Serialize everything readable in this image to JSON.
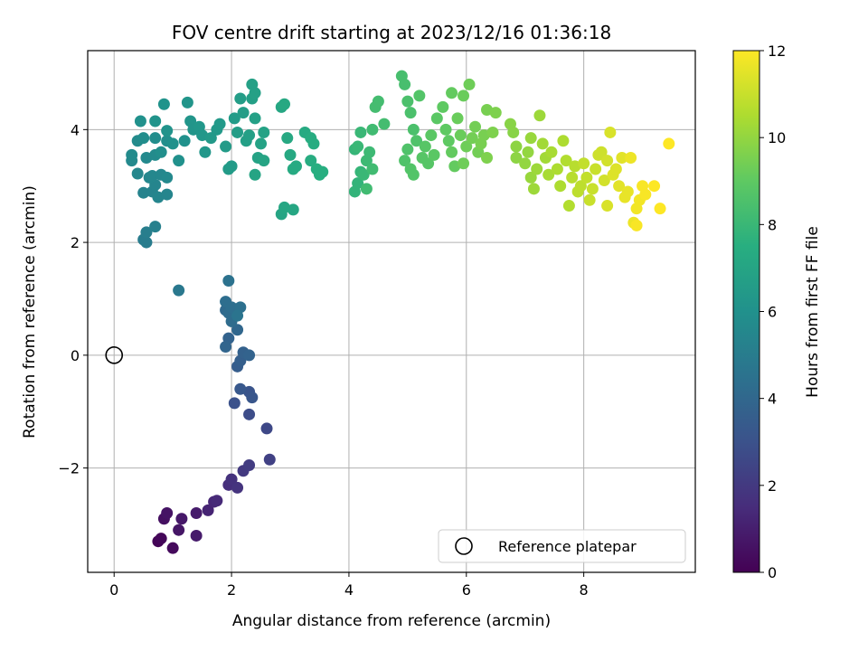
{
  "chart_data": {
    "type": "scatter",
    "title": "FOV centre drift starting at 2023/12/16 01:36:18",
    "xlabel": "Angular distance from reference (arcmin)",
    "ylabel": "Rotation from reference (arcmin)",
    "xlim": [
      -0.45,
      9.9
    ],
    "ylim": [
      -3.85,
      5.4
    ],
    "xticks": [
      0,
      2,
      4,
      6,
      8
    ],
    "yticks": [
      -2,
      0,
      2,
      4
    ],
    "xtick_labels": [
      "0",
      "2",
      "4",
      "6",
      "8"
    ],
    "ytick_labels": [
      "−2",
      "0",
      "2",
      "4"
    ],
    "grid": true,
    "colormap": "viridis",
    "colorbar": {
      "label": "Hours from first FF file",
      "range": [
        0,
        12
      ],
      "ticks": [
        0,
        2,
        4,
        6,
        8,
        10,
        12
      ],
      "tick_labels": [
        "0",
        "2",
        "4",
        "6",
        "8",
        "10",
        "12"
      ]
    },
    "legend": {
      "position": "lower-right",
      "entries": [
        {
          "label": "Reference platepar",
          "marker": "open-circle"
        }
      ]
    },
    "reference_point": {
      "x": 0,
      "y": 0,
      "label": "Reference platepar"
    },
    "points": [
      {
        "x": 0.75,
        "y": -3.3,
        "t": 0.1
      },
      {
        "x": 0.8,
        "y": -3.25,
        "t": 0.2
      },
      {
        "x": 1.0,
        "y": -3.42,
        "t": 0.3
      },
      {
        "x": 0.85,
        "y": -2.9,
        "t": 0.5
      },
      {
        "x": 0.9,
        "y": -2.8,
        "t": 0.6
      },
      {
        "x": 1.1,
        "y": -3.1,
        "t": 0.7
      },
      {
        "x": 1.15,
        "y": -2.9,
        "t": 0.8
      },
      {
        "x": 1.4,
        "y": -2.8,
        "t": 0.9
      },
      {
        "x": 1.4,
        "y": -3.2,
        "t": 0.9
      },
      {
        "x": 1.6,
        "y": -2.75,
        "t": 1.2
      },
      {
        "x": 1.7,
        "y": -2.6,
        "t": 1.3
      },
      {
        "x": 1.75,
        "y": -2.58,
        "t": 1.4
      },
      {
        "x": 1.95,
        "y": -2.3,
        "t": 1.6
      },
      {
        "x": 2.0,
        "y": -2.2,
        "t": 1.7
      },
      {
        "x": 2.1,
        "y": -2.35,
        "t": 1.8
      },
      {
        "x": 2.2,
        "y": -2.05,
        "t": 2.0
      },
      {
        "x": 2.3,
        "y": -1.95,
        "t": 2.1
      },
      {
        "x": 2.65,
        "y": -1.85,
        "t": 2.3
      },
      {
        "x": 2.6,
        "y": -1.3,
        "t": 2.6
      },
      {
        "x": 2.3,
        "y": -1.05,
        "t": 2.8
      },
      {
        "x": 2.05,
        "y": -0.85,
        "t": 3.0
      },
      {
        "x": 2.3,
        "y": -0.65,
        "t": 3.1
      },
      {
        "x": 2.35,
        "y": -0.75,
        "t": 3.2
      },
      {
        "x": 2.15,
        "y": -0.6,
        "t": 3.3
      },
      {
        "x": 2.1,
        "y": -0.2,
        "t": 3.5
      },
      {
        "x": 2.15,
        "y": -0.1,
        "t": 3.6
      },
      {
        "x": 2.2,
        "y": 0.05,
        "t": 3.7
      },
      {
        "x": 2.3,
        "y": 0.0,
        "t": 3.8
      },
      {
        "x": 1.95,
        "y": 0.3,
        "t": 3.8
      },
      {
        "x": 1.9,
        "y": 0.15,
        "t": 3.9
      },
      {
        "x": 2.1,
        "y": 0.45,
        "t": 4.0
      },
      {
        "x": 1.9,
        "y": 0.8,
        "t": 4.1
      },
      {
        "x": 1.95,
        "y": 0.75,
        "t": 4.2
      },
      {
        "x": 2.0,
        "y": 0.6,
        "t": 4.2
      },
      {
        "x": 1.9,
        "y": 0.95,
        "t": 4.3
      },
      {
        "x": 2.0,
        "y": 0.85,
        "t": 4.3
      },
      {
        "x": 2.15,
        "y": 0.85,
        "t": 4.4
      },
      {
        "x": 1.95,
        "y": 1.32,
        "t": 4.5
      },
      {
        "x": 2.1,
        "y": 0.7,
        "t": 4.6
      },
      {
        "x": 1.1,
        "y": 1.15,
        "t": 4.8
      },
      {
        "x": 0.55,
        "y": 2.0,
        "t": 5.0
      },
      {
        "x": 0.5,
        "y": 2.05,
        "t": 5.0
      },
      {
        "x": 0.55,
        "y": 2.18,
        "t": 5.1
      },
      {
        "x": 0.7,
        "y": 2.28,
        "t": 5.2
      },
      {
        "x": 0.5,
        "y": 2.88,
        "t": 5.3
      },
      {
        "x": 0.65,
        "y": 2.9,
        "t": 5.3
      },
      {
        "x": 0.75,
        "y": 2.8,
        "t": 5.4
      },
      {
        "x": 0.9,
        "y": 2.85,
        "t": 5.4
      },
      {
        "x": 0.7,
        "y": 3.02,
        "t": 5.4
      },
      {
        "x": 0.4,
        "y": 3.22,
        "t": 5.5
      },
      {
        "x": 0.6,
        "y": 3.15,
        "t": 5.5
      },
      {
        "x": 0.65,
        "y": 3.18,
        "t": 5.5
      },
      {
        "x": 0.8,
        "y": 3.2,
        "t": 5.5
      },
      {
        "x": 0.9,
        "y": 3.15,
        "t": 5.6
      },
      {
        "x": 0.3,
        "y": 3.45,
        "t": 5.6
      },
      {
        "x": 0.55,
        "y": 3.5,
        "t": 5.6
      },
      {
        "x": 0.7,
        "y": 3.55,
        "t": 5.7
      },
      {
        "x": 0.3,
        "y": 3.55,
        "t": 5.7
      },
      {
        "x": 0.4,
        "y": 3.8,
        "t": 5.7
      },
      {
        "x": 0.5,
        "y": 3.85,
        "t": 5.8
      },
      {
        "x": 0.7,
        "y": 3.85,
        "t": 5.8
      },
      {
        "x": 0.8,
        "y": 3.6,
        "t": 5.9
      },
      {
        "x": 0.9,
        "y": 3.8,
        "t": 5.9
      },
      {
        "x": 1.0,
        "y": 3.75,
        "t": 6.0
      },
      {
        "x": 1.1,
        "y": 3.45,
        "t": 6.0
      },
      {
        "x": 1.2,
        "y": 3.8,
        "t": 6.0
      },
      {
        "x": 0.45,
        "y": 4.15,
        "t": 6.0
      },
      {
        "x": 0.7,
        "y": 4.15,
        "t": 6.1
      },
      {
        "x": 0.85,
        "y": 4.45,
        "t": 6.1
      },
      {
        "x": 0.9,
        "y": 3.98,
        "t": 6.1
      },
      {
        "x": 1.25,
        "y": 4.48,
        "t": 6.2
      },
      {
        "x": 1.3,
        "y": 4.15,
        "t": 6.2
      },
      {
        "x": 1.35,
        "y": 4.0,
        "t": 6.2
      },
      {
        "x": 1.45,
        "y": 4.05,
        "t": 6.3
      },
      {
        "x": 1.5,
        "y": 3.9,
        "t": 6.3
      },
      {
        "x": 1.55,
        "y": 3.6,
        "t": 6.3
      },
      {
        "x": 1.65,
        "y": 3.85,
        "t": 6.4
      },
      {
        "x": 1.75,
        "y": 4.0,
        "t": 6.4
      },
      {
        "x": 1.8,
        "y": 4.1,
        "t": 6.4
      },
      {
        "x": 1.9,
        "y": 3.7,
        "t": 6.5
      },
      {
        "x": 1.95,
        "y": 3.3,
        "t": 6.5
      },
      {
        "x": 2.0,
        "y": 3.35,
        "t": 6.5
      },
      {
        "x": 2.05,
        "y": 4.2,
        "t": 6.5
      },
      {
        "x": 2.1,
        "y": 3.95,
        "t": 6.6
      },
      {
        "x": 2.15,
        "y": 4.55,
        "t": 6.6
      },
      {
        "x": 2.2,
        "y": 4.3,
        "t": 6.6
      },
      {
        "x": 2.25,
        "y": 3.8,
        "t": 6.7
      },
      {
        "x": 2.3,
        "y": 3.9,
        "t": 6.7
      },
      {
        "x": 2.35,
        "y": 4.55,
        "t": 6.7
      },
      {
        "x": 2.4,
        "y": 4.65,
        "t": 6.8
      },
      {
        "x": 2.35,
        "y": 4.8,
        "t": 6.8
      },
      {
        "x": 2.4,
        "y": 4.2,
        "t": 6.8
      },
      {
        "x": 2.45,
        "y": 3.5,
        "t": 6.9
      },
      {
        "x": 2.5,
        "y": 3.75,
        "t": 6.9
      },
      {
        "x": 2.55,
        "y": 3.95,
        "t": 6.9
      },
      {
        "x": 2.4,
        "y": 3.2,
        "t": 7.0
      },
      {
        "x": 2.55,
        "y": 3.45,
        "t": 7.0
      },
      {
        "x": 2.85,
        "y": 2.5,
        "t": 7.0
      },
      {
        "x": 2.9,
        "y": 2.62,
        "t": 7.1
      },
      {
        "x": 3.05,
        "y": 2.58,
        "t": 7.1
      },
      {
        "x": 2.85,
        "y": 4.4,
        "t": 7.1
      },
      {
        "x": 2.9,
        "y": 4.45,
        "t": 7.2
      },
      {
        "x": 2.95,
        "y": 3.85,
        "t": 7.2
      },
      {
        "x": 3.0,
        "y": 3.55,
        "t": 7.2
      },
      {
        "x": 3.05,
        "y": 3.3,
        "t": 7.3
      },
      {
        "x": 3.1,
        "y": 3.35,
        "t": 7.3
      },
      {
        "x": 3.25,
        "y": 3.95,
        "t": 7.3
      },
      {
        "x": 3.35,
        "y": 3.85,
        "t": 7.4
      },
      {
        "x": 3.4,
        "y": 3.75,
        "t": 7.4
      },
      {
        "x": 3.35,
        "y": 3.45,
        "t": 7.4
      },
      {
        "x": 3.45,
        "y": 3.3,
        "t": 7.5
      },
      {
        "x": 3.5,
        "y": 3.2,
        "t": 7.5
      },
      {
        "x": 3.55,
        "y": 3.25,
        "t": 7.5
      },
      {
        "x": 4.1,
        "y": 2.9,
        "t": 7.8
      },
      {
        "x": 4.15,
        "y": 3.05,
        "t": 7.8
      },
      {
        "x": 4.2,
        "y": 3.25,
        "t": 7.9
      },
      {
        "x": 4.1,
        "y": 3.65,
        "t": 7.9
      },
      {
        "x": 4.15,
        "y": 3.7,
        "t": 8.0
      },
      {
        "x": 4.2,
        "y": 3.95,
        "t": 8.0
      },
      {
        "x": 4.25,
        "y": 3.2,
        "t": 8.0
      },
      {
        "x": 4.3,
        "y": 3.45,
        "t": 8.1
      },
      {
        "x": 4.35,
        "y": 3.6,
        "t": 8.1
      },
      {
        "x": 4.3,
        "y": 2.95,
        "t": 8.2
      },
      {
        "x": 4.4,
        "y": 3.3,
        "t": 8.2
      },
      {
        "x": 4.4,
        "y": 4.0,
        "t": 8.2
      },
      {
        "x": 4.45,
        "y": 4.4,
        "t": 8.3
      },
      {
        "x": 4.5,
        "y": 4.5,
        "t": 8.3
      },
      {
        "x": 4.6,
        "y": 4.1,
        "t": 8.3
      },
      {
        "x": 4.9,
        "y": 4.95,
        "t": 8.4
      },
      {
        "x": 4.95,
        "y": 4.8,
        "t": 8.4
      },
      {
        "x": 5.0,
        "y": 4.5,
        "t": 8.5
      },
      {
        "x": 5.05,
        "y": 4.3,
        "t": 8.5
      },
      {
        "x": 5.1,
        "y": 4.0,
        "t": 8.5
      },
      {
        "x": 5.15,
        "y": 3.8,
        "t": 8.6
      },
      {
        "x": 4.95,
        "y": 3.45,
        "t": 8.6
      },
      {
        "x": 5.0,
        "y": 3.65,
        "t": 8.6
      },
      {
        "x": 5.05,
        "y": 3.3,
        "t": 8.7
      },
      {
        "x": 5.1,
        "y": 3.2,
        "t": 8.7
      },
      {
        "x": 5.2,
        "y": 4.6,
        "t": 8.7
      },
      {
        "x": 5.25,
        "y": 3.5,
        "t": 8.8
      },
      {
        "x": 5.3,
        "y": 3.7,
        "t": 8.8
      },
      {
        "x": 5.35,
        "y": 3.4,
        "t": 8.8
      },
      {
        "x": 5.4,
        "y": 3.9,
        "t": 8.9
      },
      {
        "x": 5.45,
        "y": 3.55,
        "t": 8.9
      },
      {
        "x": 5.5,
        "y": 4.2,
        "t": 8.9
      },
      {
        "x": 5.6,
        "y": 4.4,
        "t": 9.0
      },
      {
        "x": 5.65,
        "y": 4.0,
        "t": 9.0
      },
      {
        "x": 5.7,
        "y": 3.8,
        "t": 9.0
      },
      {
        "x": 5.75,
        "y": 4.65,
        "t": 9.1
      },
      {
        "x": 5.75,
        "y": 3.6,
        "t": 9.1
      },
      {
        "x": 5.8,
        "y": 3.35,
        "t": 9.1
      },
      {
        "x": 5.85,
        "y": 4.2,
        "t": 9.2
      },
      {
        "x": 5.9,
        "y": 3.9,
        "t": 9.2
      },
      {
        "x": 5.95,
        "y": 4.6,
        "t": 9.2
      },
      {
        "x": 5.95,
        "y": 3.4,
        "t": 9.3
      },
      {
        "x": 6.0,
        "y": 3.7,
        "t": 9.3
      },
      {
        "x": 6.05,
        "y": 4.8,
        "t": 9.3
      },
      {
        "x": 6.1,
        "y": 3.85,
        "t": 9.4
      },
      {
        "x": 6.15,
        "y": 4.05,
        "t": 9.4
      },
      {
        "x": 6.2,
        "y": 3.6,
        "t": 9.4
      },
      {
        "x": 6.25,
        "y": 3.75,
        "t": 9.5
      },
      {
        "x": 6.3,
        "y": 3.9,
        "t": 9.5
      },
      {
        "x": 6.35,
        "y": 4.35,
        "t": 9.5
      },
      {
        "x": 6.35,
        "y": 3.5,
        "t": 9.6
      },
      {
        "x": 6.45,
        "y": 3.95,
        "t": 9.6
      },
      {
        "x": 6.5,
        "y": 4.3,
        "t": 9.6
      },
      {
        "x": 6.75,
        "y": 4.1,
        "t": 9.8
      },
      {
        "x": 6.8,
        "y": 3.95,
        "t": 9.8
      },
      {
        "x": 6.85,
        "y": 3.7,
        "t": 9.9
      },
      {
        "x": 6.85,
        "y": 3.5,
        "t": 9.9
      },
      {
        "x": 7.0,
        "y": 3.4,
        "t": 10.0
      },
      {
        "x": 7.05,
        "y": 3.6,
        "t": 10.0
      },
      {
        "x": 7.1,
        "y": 3.85,
        "t": 10.1
      },
      {
        "x": 7.1,
        "y": 3.15,
        "t": 10.1
      },
      {
        "x": 7.15,
        "y": 2.95,
        "t": 10.2
      },
      {
        "x": 7.2,
        "y": 3.3,
        "t": 10.2
      },
      {
        "x": 7.25,
        "y": 4.25,
        "t": 10.2
      },
      {
        "x": 7.3,
        "y": 3.75,
        "t": 10.3
      },
      {
        "x": 7.35,
        "y": 3.5,
        "t": 10.3
      },
      {
        "x": 7.4,
        "y": 3.2,
        "t": 10.4
      },
      {
        "x": 7.45,
        "y": 3.6,
        "t": 10.4
      },
      {
        "x": 7.55,
        "y": 3.3,
        "t": 10.5
      },
      {
        "x": 7.6,
        "y": 3.0,
        "t": 10.5
      },
      {
        "x": 7.65,
        "y": 3.8,
        "t": 10.5
      },
      {
        "x": 7.7,
        "y": 3.45,
        "t": 10.6
      },
      {
        "x": 7.75,
        "y": 2.65,
        "t": 10.6
      },
      {
        "x": 7.8,
        "y": 3.15,
        "t": 10.7
      },
      {
        "x": 7.85,
        "y": 3.35,
        "t": 10.7
      },
      {
        "x": 7.9,
        "y": 2.9,
        "t": 10.8
      },
      {
        "x": 7.95,
        "y": 3.0,
        "t": 10.8
      },
      {
        "x": 8.0,
        "y": 3.4,
        "t": 10.9
      },
      {
        "x": 8.05,
        "y": 3.15,
        "t": 10.9
      },
      {
        "x": 8.1,
        "y": 2.75,
        "t": 11.0
      },
      {
        "x": 8.15,
        "y": 2.95,
        "t": 11.0
      },
      {
        "x": 8.2,
        "y": 3.3,
        "t": 11.0
      },
      {
        "x": 8.25,
        "y": 3.55,
        "t": 11.1
      },
      {
        "x": 8.3,
        "y": 3.6,
        "t": 11.1
      },
      {
        "x": 8.35,
        "y": 3.1,
        "t": 11.2
      },
      {
        "x": 8.4,
        "y": 3.45,
        "t": 11.2
      },
      {
        "x": 8.4,
        "y": 2.65,
        "t": 11.3
      },
      {
        "x": 8.45,
        "y": 3.95,
        "t": 11.3
      },
      {
        "x": 8.5,
        "y": 3.2,
        "t": 11.4
      },
      {
        "x": 8.55,
        "y": 3.3,
        "t": 11.4
      },
      {
        "x": 8.6,
        "y": 3.0,
        "t": 11.5
      },
      {
        "x": 8.65,
        "y": 3.5,
        "t": 11.5
      },
      {
        "x": 8.7,
        "y": 2.8,
        "t": 11.6
      },
      {
        "x": 8.75,
        "y": 2.9,
        "t": 11.6
      },
      {
        "x": 8.8,
        "y": 3.5,
        "t": 11.7
      },
      {
        "x": 8.85,
        "y": 2.35,
        "t": 11.7
      },
      {
        "x": 8.9,
        "y": 2.6,
        "t": 11.8
      },
      {
        "x": 8.95,
        "y": 2.75,
        "t": 11.8
      },
      {
        "x": 9.0,
        "y": 3.0,
        "t": 11.9
      },
      {
        "x": 9.05,
        "y": 2.85,
        "t": 11.9
      },
      {
        "x": 8.9,
        "y": 2.3,
        "t": 11.9
      },
      {
        "x": 9.2,
        "y": 3.0,
        "t": 12.0
      },
      {
        "x": 9.3,
        "y": 2.6,
        "t": 12.0
      },
      {
        "x": 9.45,
        "y": 3.75,
        "t": 12.0
      }
    ]
  }
}
